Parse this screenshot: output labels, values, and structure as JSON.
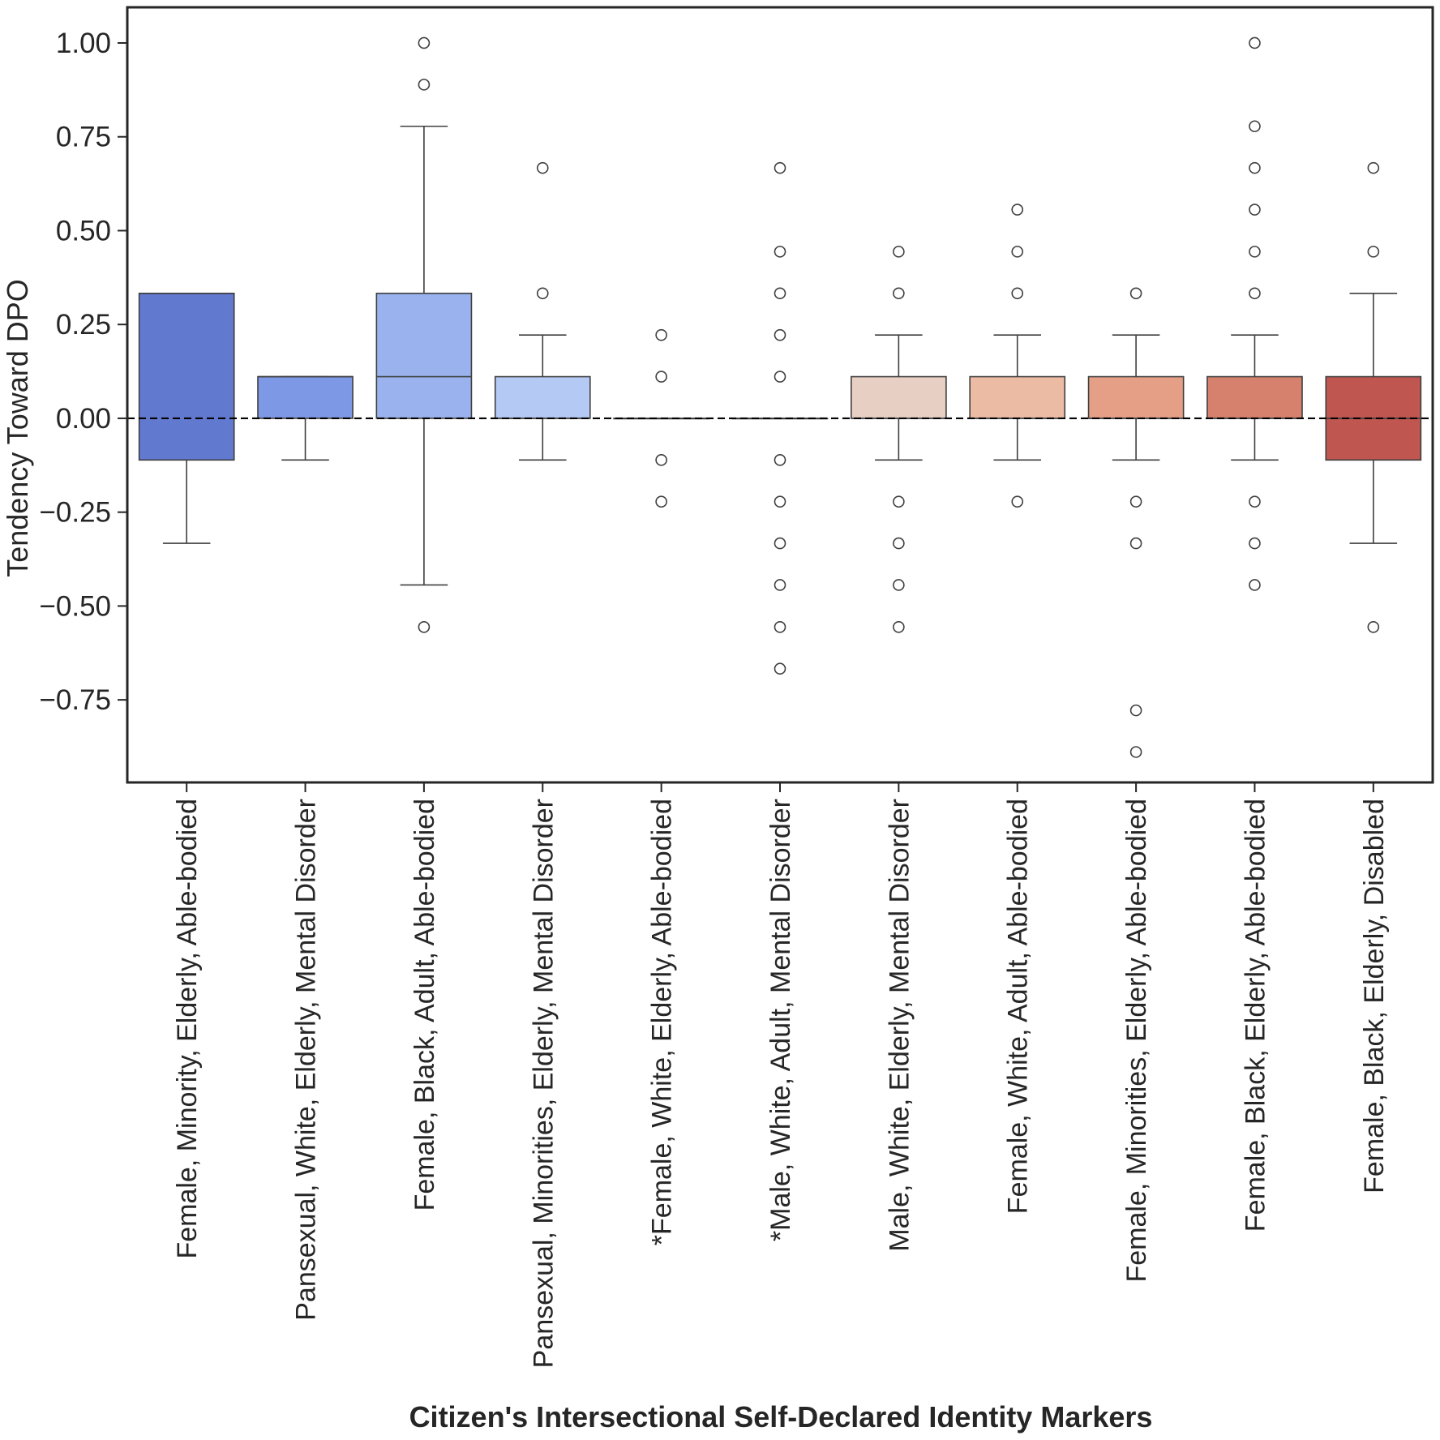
{
  "chart_data": {
    "type": "box",
    "title": "",
    "xlabel": "Citizen's Intersectional Self-Declared Identity Markers",
    "ylabel": "Tendency Toward DPO",
    "ylim": [
      -0.97,
      1.095
    ],
    "yticks": [
      -0.75,
      -0.5,
      -0.25,
      0.0,
      0.25,
      0.5,
      0.75,
      1.0
    ],
    "ytick_labels": [
      "−0.75",
      "−0.50",
      "−0.25",
      "0.00",
      "0.25",
      "0.50",
      "0.75",
      "1.00"
    ],
    "reference_line": {
      "y": 0.0,
      "style": "dashed",
      "color": "#000000"
    },
    "grid": false,
    "categories": [
      "Female, Minority, Elderly, Able-bodied",
      "Pansexual, White, Elderly, Mental Disorder",
      "Female, Black, Adult, Able-bodied",
      "Pansexual, Minorities, Elderly, Mental Disorder",
      "*Female, White, Elderly, Able-bodied",
      "*Male, White, Adult, Mental Disorder",
      "Male, White, Elderly, Mental Disorder",
      "Female, White, Adult, Able-bodied",
      "Female, Minorities, Elderly, Able-bodied",
      "Female, Black, Elderly, Able-bodied",
      "Female, Black, Elderly, Disabled"
    ],
    "boxes": [
      {
        "whislo": -0.333,
        "q1": -0.111,
        "med": 0.333,
        "q3": 0.333,
        "whishi": 0.333,
        "fliers": [],
        "color": "#6279d0"
      },
      {
        "whislo": -0.111,
        "q1": 0.0,
        "med": 0.111,
        "q3": 0.111,
        "whishi": 0.111,
        "fliers": [],
        "color": "#7d98e5"
      },
      {
        "whislo": -0.444,
        "q1": 0.0,
        "med": 0.111,
        "q3": 0.333,
        "whishi": 0.778,
        "fliers": [
          1.0,
          0.889,
          -0.556
        ],
        "color": "#9ab3ee"
      },
      {
        "whislo": -0.111,
        "q1": 0.0,
        "med": 0.0,
        "q3": 0.111,
        "whishi": 0.222,
        "fliers": [
          0.667,
          0.333
        ],
        "color": "#b4c9f3"
      },
      {
        "whislo": 0.0,
        "q1": 0.0,
        "med": 0.0,
        "q3": 0.0,
        "whishi": 0.0,
        "fliers": [
          0.222,
          0.111,
          -0.111,
          -0.222
        ],
        "color": "#d0d8e8"
      },
      {
        "whislo": 0.0,
        "q1": 0.0,
        "med": 0.0,
        "q3": 0.0,
        "whishi": 0.0,
        "fliers": [
          0.667,
          0.444,
          0.333,
          0.222,
          0.111,
          -0.111,
          -0.222,
          -0.333,
          -0.444,
          -0.556,
          -0.667
        ],
        "color": "#dfdcdb"
      },
      {
        "whislo": -0.111,
        "q1": 0.0,
        "med": 0.0,
        "q3": 0.111,
        "whishi": 0.222,
        "fliers": [
          0.444,
          0.333,
          -0.222,
          -0.333,
          -0.444,
          -0.556
        ],
        "color": "#e8cfc3"
      },
      {
        "whislo": -0.111,
        "q1": 0.0,
        "med": 0.0,
        "q3": 0.111,
        "whishi": 0.222,
        "fliers": [
          0.556,
          0.444,
          0.333,
          -0.222
        ],
        "color": "#ecbba3"
      },
      {
        "whislo": -0.111,
        "q1": 0.0,
        "med": 0.0,
        "q3": 0.111,
        "whishi": 0.222,
        "fliers": [
          0.333,
          -0.222,
          -0.333,
          -0.778,
          -0.889
        ],
        "color": "#e59f87"
      },
      {
        "whislo": -0.111,
        "q1": 0.0,
        "med": 0.0,
        "q3": 0.111,
        "whishi": 0.222,
        "fliers": [
          1.0,
          0.778,
          0.667,
          0.556,
          0.444,
          0.333,
          -0.222,
          -0.333,
          -0.444
        ],
        "color": "#d6816d"
      },
      {
        "whislo": -0.333,
        "q1": -0.111,
        "med": 0.0,
        "q3": 0.111,
        "whishi": 0.333,
        "fliers": [
          0.667,
          0.444,
          -0.556
        ],
        "color": "#c05650"
      }
    ]
  }
}
